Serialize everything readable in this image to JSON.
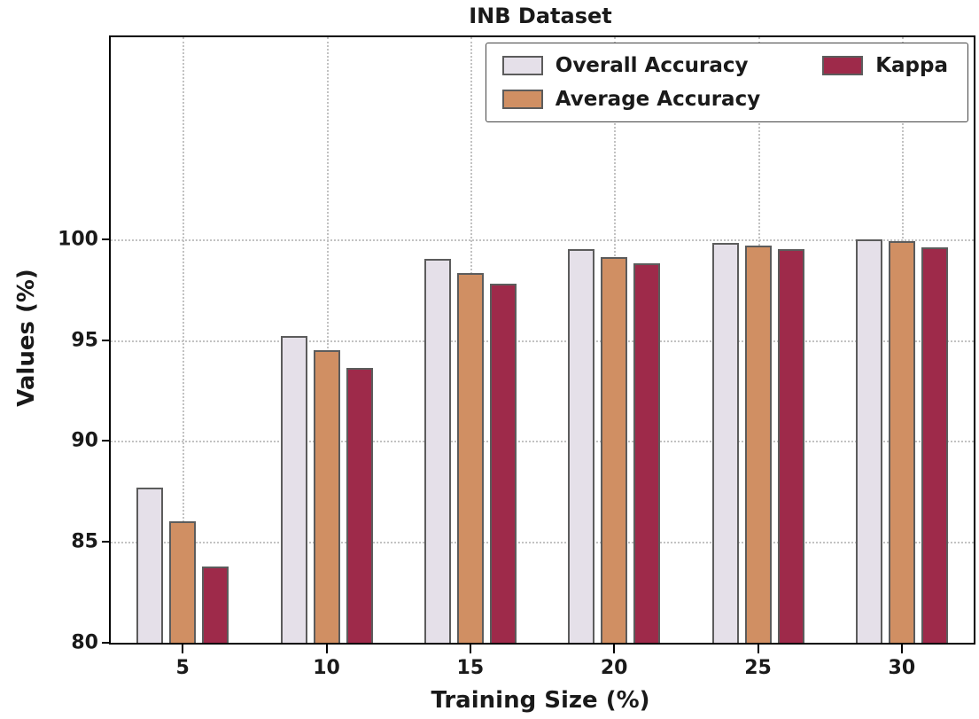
{
  "chart_data": {
    "type": "bar",
    "title": "INB Dataset",
    "xlabel": "Training Size (%)",
    "ylabel": "Values (%)",
    "categories": [
      "5",
      "10",
      "15",
      "20",
      "25",
      "30"
    ],
    "series": [
      {
        "name": "Overall Accuracy",
        "color": "#e5e0e9",
        "edge_color": "#5c5c5c",
        "values": [
          87.7,
          95.2,
          99.0,
          99.5,
          99.8,
          100.0
        ]
      },
      {
        "name": "Average Accuracy",
        "color": "#d08f63",
        "edge_color": "#5c5c5c",
        "values": [
          86.0,
          94.5,
          98.3,
          99.1,
          99.7,
          99.9
        ]
      },
      {
        "name": "Kappa",
        "color": "#9e2a4a",
        "edge_color": "#5c5c5c",
        "values": [
          83.8,
          93.6,
          97.8,
          98.8,
          99.5,
          99.6
        ]
      }
    ],
    "ylim": [
      80,
      110
    ],
    "yticks": [
      80,
      85,
      90,
      95,
      100
    ],
    "grid": "dotted",
    "legend_position": "upper right",
    "grid_color": "#c2c2c2",
    "axis_color": "#000000"
  }
}
